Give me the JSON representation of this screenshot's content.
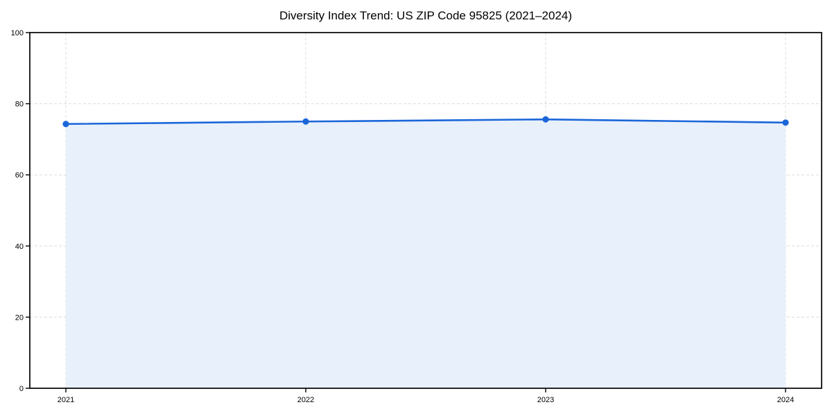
{
  "chart_data": {
    "type": "line",
    "title": "Diversity Index Trend: US ZIP Code 95825 (2021–2024)",
    "x": [
      "2021",
      "2022",
      "2023",
      "2024"
    ],
    "series": [
      {
        "name": "Diversity Index",
        "values": [
          74.3,
          75.0,
          75.6,
          74.7
        ]
      }
    ],
    "xlabel": "",
    "ylabel": "",
    "ylim": [
      0,
      100
    ],
    "yticks": [
      0,
      20,
      40,
      60,
      80,
      100
    ],
    "grid": true,
    "grid_style": "dashed",
    "legend_position": "none",
    "area_fill": true,
    "colors": {
      "line": "#1a66d9",
      "marker": "#1a66d9",
      "area": "#e8f0fb",
      "grid": "#dcdcdc",
      "spine": "#000000",
      "tick_text": "#000000",
      "background": "#ffffff"
    }
  }
}
